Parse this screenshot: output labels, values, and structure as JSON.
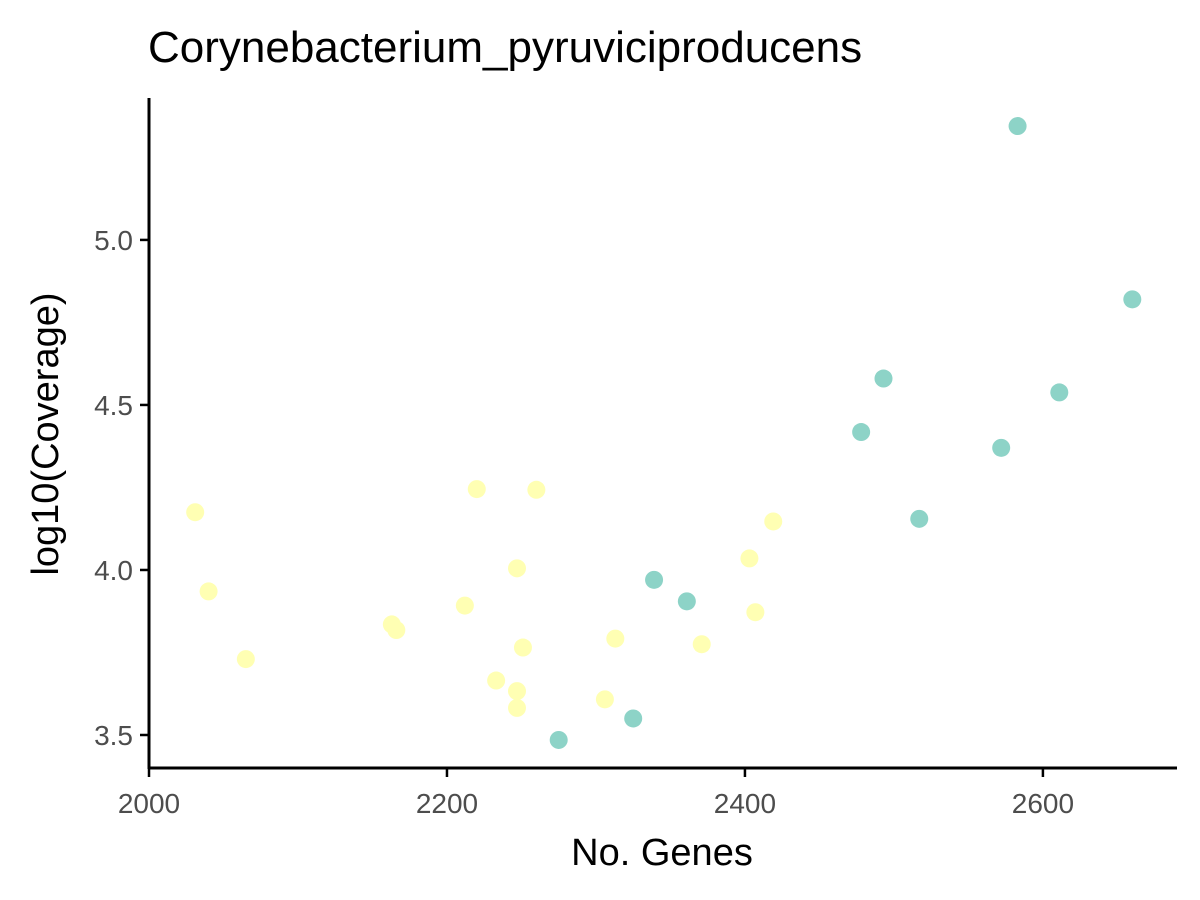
{
  "chart_data": {
    "type": "scatter",
    "title": "Corynebacterium_pyruviciproducens",
    "xlabel": "No. Genes",
    "ylabel": "log10(Coverage)",
    "xlim": [
      2000,
      2690
    ],
    "ylim": [
      3.4,
      5.43
    ],
    "x_ticks": [
      2000,
      2200,
      2400,
      2600
    ],
    "x_tick_labels": [
      "2000",
      "2200",
      "2400",
      "2600"
    ],
    "y_ticks": [
      3.5,
      4.0,
      4.5,
      5.0
    ],
    "y_tick_labels": [
      "3.5",
      "4.0",
      "4.5",
      "5.0"
    ],
    "grid": false,
    "legend": "none",
    "colors": {
      "yellow": "#ffffb3",
      "teal": "#8dd3c7"
    },
    "series": [
      {
        "color": "#ffffb3",
        "points": [
          {
            "x": 2031,
            "y": 4.175
          },
          {
            "x": 2040,
            "y": 3.935
          },
          {
            "x": 2065,
            "y": 3.73
          },
          {
            "x": 2163,
            "y": 3.835
          },
          {
            "x": 2166,
            "y": 3.818
          },
          {
            "x": 2212,
            "y": 3.892
          },
          {
            "x": 2220,
            "y": 4.245
          },
          {
            "x": 2233,
            "y": 3.665
          },
          {
            "x": 2247,
            "y": 4.005
          },
          {
            "x": 2247,
            "y": 3.633
          },
          {
            "x": 2247,
            "y": 3.582
          },
          {
            "x": 2251,
            "y": 3.765
          },
          {
            "x": 2260,
            "y": 4.243
          },
          {
            "x": 2306,
            "y": 3.608
          },
          {
            "x": 2313,
            "y": 3.792
          },
          {
            "x": 2371,
            "y": 3.775
          },
          {
            "x": 2403,
            "y": 4.035
          },
          {
            "x": 2407,
            "y": 3.872
          },
          {
            "x": 2419,
            "y": 4.147
          }
        ]
      },
      {
        "color": "#8dd3c7",
        "points": [
          {
            "x": 2275,
            "y": 3.485
          },
          {
            "x": 2325,
            "y": 3.55
          },
          {
            "x": 2339,
            "y": 3.97
          },
          {
            "x": 2361,
            "y": 3.905
          },
          {
            "x": 2478,
            "y": 4.418
          },
          {
            "x": 2493,
            "y": 4.58
          },
          {
            "x": 2517,
            "y": 4.155
          },
          {
            "x": 2572,
            "y": 4.37
          },
          {
            "x": 2583,
            "y": 5.345
          },
          {
            "x": 2611,
            "y": 4.538
          },
          {
            "x": 2660,
            "y": 4.82
          }
        ]
      }
    ]
  }
}
